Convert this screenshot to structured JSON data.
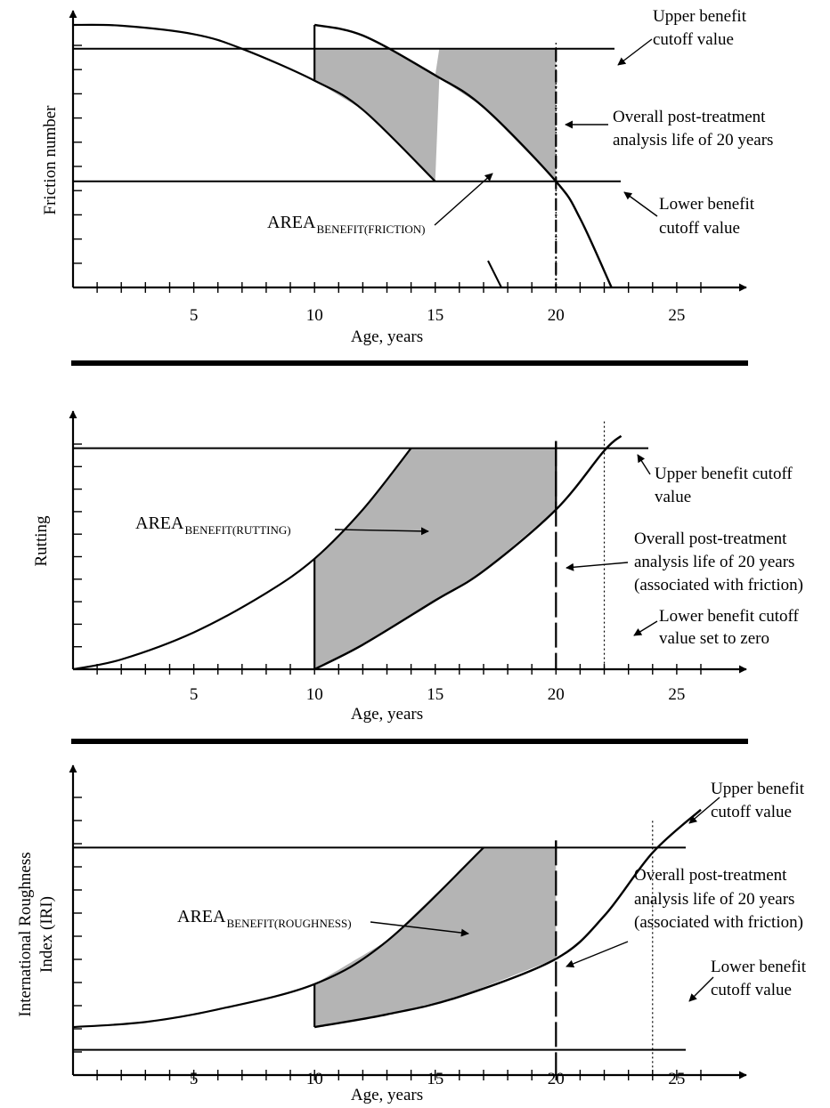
{
  "chart_data": [
    {
      "type": "line",
      "xlabel": "Age, years",
      "ylabel": "Friction number",
      "xlim": [
        0,
        26
      ],
      "ylim": [
        0,
        10
      ],
      "xticks": [
        5,
        10,
        15,
        20,
        25
      ],
      "thresholds": {
        "upper": 9,
        "lower": 4,
        "analysis_life": 20,
        "dotted_at": 20
      },
      "curves": {
        "before_treatment": {
          "x": [
            0,
            2,
            5,
            7,
            10,
            12,
            15
          ],
          "y": [
            9.9,
            9.87,
            9.55,
            9.0,
            7.8,
            6.7,
            4.0
          ]
        },
        "after_treatment": {
          "x": [
            10,
            12,
            15,
            17,
            20,
            21,
            22.3
          ],
          "y": [
            9.9,
            9.5,
            8.0,
            6.8,
            4.0,
            2.6,
            0.0
          ]
        }
      },
      "shaded_area": {
        "from_x": 10,
        "to_x": 20,
        "between": [
          "after_treatment",
          "before_treatment"
        ],
        "clip": [
          "lower",
          "upper"
        ]
      },
      "annotations": {
        "area": {
          "main": "AREA",
          "sub": "BENEFIT(FRICTION)"
        },
        "upper": [
          "Upper benefit",
          "cutoff value"
        ],
        "life": [
          "Overall post-treatment",
          "analysis life of 20 years"
        ],
        "lower": [
          "Lower benefit",
          "cutoff value"
        ]
      }
    },
    {
      "type": "line",
      "xlabel": "Age, years",
      "ylabel": "Rutting",
      "xlim": [
        0,
        26
      ],
      "ylim": [
        0,
        10
      ],
      "xticks": [
        5,
        10,
        15,
        20,
        25
      ],
      "thresholds": {
        "upper": 9,
        "lower": 0,
        "analysis_life": 20,
        "dotted_at": 22
      },
      "curves": {
        "before_treatment": {
          "x": [
            0,
            2,
            5,
            8,
            10,
            12,
            14
          ],
          "y": [
            0,
            0.4,
            1.5,
            3.1,
            4.5,
            6.5,
            9.0
          ]
        },
        "after_treatment": {
          "x": [
            10,
            12,
            15,
            17,
            20,
            22,
            22.7
          ],
          "y": [
            0,
            1.0,
            2.8,
            4.0,
            6.5,
            8.9,
            9.5
          ]
        }
      },
      "shaded_area": {
        "from_x": 10,
        "to_x": 20,
        "between": [
          "before_treatment",
          "after_treatment"
        ],
        "clip": [
          "lower",
          "upper"
        ]
      },
      "annotations": {
        "area": {
          "main": "AREA",
          "sub": "BENEFIT(RUTTING)"
        },
        "upper": [
          "Upper benefit cutoff",
          "value"
        ],
        "life": [
          "Overall post-treatment",
          "analysis life of 20 years",
          "(associated with friction)"
        ],
        "lower": [
          "Lower benefit cutoff",
          "value set to zero"
        ]
      }
    },
    {
      "type": "line",
      "xlabel": "Age, years",
      "ylabel": "International Roughness\nIndex (IRI)",
      "ylabel_lines": [
        "International Roughness",
        "Index (IRI)"
      ],
      "xlim": [
        0,
        26
      ],
      "ylim": [
        0,
        10
      ],
      "xticks": [
        5,
        10,
        15,
        20,
        25
      ],
      "thresholds": {
        "upper": 9,
        "lower": 1,
        "analysis_life": 20,
        "dotted_at": 24
      },
      "curves": {
        "before_treatment": {
          "x": [
            0,
            3,
            6,
            10,
            13,
            17
          ],
          "y": [
            1.9,
            2.1,
            2.6,
            3.6,
            5.3,
            9.0
          ]
        },
        "after_treatment": {
          "x": [
            10,
            13,
            16,
            20,
            22,
            24,
            26
          ],
          "y": [
            1.9,
            2.4,
            3.1,
            4.6,
            6.3,
            8.8,
            10.5
          ]
        }
      },
      "shaded_area": {
        "from_x": 10,
        "to_x": 20,
        "between": [
          "after_treatment",
          "before_treatment"
        ],
        "clip": [
          "lower",
          "upper"
        ]
      },
      "annotations": {
        "area": {
          "main": "AREA",
          "sub": "BENEFIT(ROUGHNESS)"
        },
        "upper": [
          "Upper benefit",
          "cutoff value"
        ],
        "life": [
          "Overall post-treatment",
          "analysis life of 20 years",
          "(associated with friction)"
        ],
        "lower": [
          "Lower benefit",
          "cutoff value"
        ]
      }
    }
  ]
}
